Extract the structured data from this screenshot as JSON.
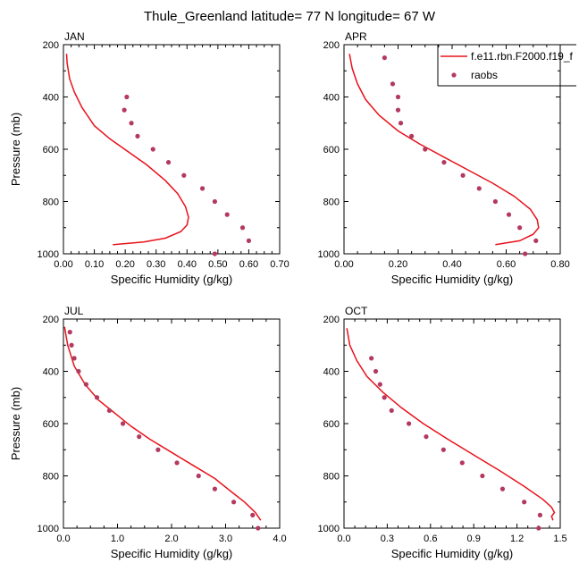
{
  "figure_title": "Thule_Greenland  latitude= 77 N longitude= 67 W",
  "legend": {
    "model_label": "f.e11.rbn.F2000.f19_f",
    "obs_label": "raobs",
    "placement": "top-right of APR panel"
  },
  "colors": {
    "model": "#e8121b",
    "obs": "#b33a5e",
    "axis": "#000000"
  },
  "chart_data": [
    {
      "type": "line",
      "panel_label": "JAN",
      "xlabel": "Specific Humidity (g/kg)",
      "ylabel": "Pressure (mb)",
      "xlim": [
        0,
        0.7
      ],
      "xticks": [
        "0.00",
        "0.10",
        "0.20",
        "0.30",
        "0.40",
        "0.50",
        "0.60",
        "0.70"
      ],
      "ylim": [
        200,
        1000
      ],
      "yticks": [
        "200",
        "400",
        "600",
        "800",
        "1000"
      ],
      "y_inverted": true,
      "series": [
        {
          "name": "f.e11.rbn.F2000.f19_f",
          "kind": "line",
          "x": [
            0.01,
            0.012,
            0.02,
            0.035,
            0.06,
            0.1,
            0.15,
            0.21,
            0.27,
            0.33,
            0.37,
            0.395,
            0.405,
            0.4,
            0.38,
            0.33,
            0.26,
            0.16
          ],
          "y": [
            235,
            270,
            330,
            380,
            440,
            510,
            560,
            610,
            660,
            720,
            770,
            820,
            860,
            890,
            915,
            940,
            955,
            965
          ]
        },
        {
          "name": "raobs",
          "kind": "scatter",
          "x": [
            0.205,
            0.197,
            0.22,
            0.24,
            0.29,
            0.34,
            0.39,
            0.45,
            0.49,
            0.53,
            0.58,
            0.6,
            0.49
          ],
          "y": [
            400,
            450,
            500,
            550,
            600,
            650,
            700,
            750,
            800,
            850,
            900,
            950,
            1000
          ]
        }
      ]
    },
    {
      "type": "line",
      "panel_label": "APR",
      "xlabel": "Specific Humidity (g/kg)",
      "ylabel": "",
      "xlim": [
        0,
        0.8
      ],
      "xticks": [
        "0.00",
        "0.20",
        "0.40",
        "0.60",
        "0.80"
      ],
      "ylim": [
        200,
        1000
      ],
      "yticks": [
        "200",
        "400",
        "600",
        "800",
        "1000"
      ],
      "y_inverted": true,
      "series": [
        {
          "name": "f.e11.rbn.F2000.f19_f",
          "kind": "line",
          "x": [
            0.02,
            0.03,
            0.05,
            0.08,
            0.13,
            0.2,
            0.28,
            0.37,
            0.46,
            0.55,
            0.63,
            0.69,
            0.715,
            0.72,
            0.7,
            0.65,
            0.56
          ],
          "y": [
            235,
            290,
            350,
            410,
            470,
            530,
            580,
            630,
            680,
            730,
            780,
            830,
            870,
            900,
            925,
            950,
            965
          ]
        },
        {
          "name": "raobs",
          "kind": "scatter",
          "x": [
            0.15,
            0.18,
            0.2,
            0.2,
            0.21,
            0.25,
            0.3,
            0.37,
            0.44,
            0.5,
            0.56,
            0.61,
            0.65,
            0.71,
            0.67
          ],
          "y": [
            250,
            350,
            400,
            450,
            500,
            550,
            600,
            650,
            700,
            750,
            800,
            850,
            900,
            950,
            1000
          ]
        }
      ]
    },
    {
      "type": "line",
      "panel_label": "JUL",
      "xlabel": "Specific Humidity (g/kg)",
      "ylabel": "Pressure (mb)",
      "xlim": [
        0,
        4.0
      ],
      "xticks": [
        "0.0",
        "1.0",
        "2.0",
        "3.0",
        "4.0"
      ],
      "ylim": [
        200,
        1000
      ],
      "yticks": [
        "200",
        "400",
        "600",
        "800",
        "1000"
      ],
      "y_inverted": true,
      "series": [
        {
          "name": "f.e11.rbn.F2000.f19_f",
          "kind": "line",
          "x": [
            0.02,
            0.08,
            0.2,
            0.4,
            0.65,
            0.95,
            1.25,
            1.6,
            2.0,
            2.4,
            2.8,
            3.1,
            3.35,
            3.55,
            3.65
          ],
          "y": [
            230,
            300,
            380,
            450,
            510,
            560,
            610,
            660,
            710,
            760,
            810,
            860,
            900,
            940,
            970
          ]
        },
        {
          "name": "raobs",
          "kind": "scatter",
          "x": [
            0.12,
            0.15,
            0.2,
            0.28,
            0.42,
            0.62,
            0.85,
            1.1,
            1.4,
            1.75,
            2.1,
            2.5,
            2.8,
            3.15,
            3.5,
            3.6
          ],
          "y": [
            250,
            300,
            350,
            400,
            450,
            500,
            550,
            600,
            650,
            700,
            750,
            800,
            850,
            900,
            950,
            1000
          ]
        }
      ]
    },
    {
      "type": "line",
      "panel_label": "OCT",
      "xlabel": "Specific Humidity (g/kg)",
      "ylabel": "",
      "xlim": [
        0,
        1.5
      ],
      "xticks": [
        "0.0",
        "0.3",
        "0.6",
        "0.9",
        "1.2",
        "1.5"
      ],
      "ylim": [
        200,
        1000
      ],
      "yticks": [
        "200",
        "400",
        "600",
        "800",
        "1000"
      ],
      "y_inverted": true,
      "series": [
        {
          "name": "f.e11.rbn.F2000.f19_f",
          "kind": "line",
          "x": [
            0.02,
            0.04,
            0.09,
            0.16,
            0.27,
            0.4,
            0.55,
            0.72,
            0.9,
            1.08,
            1.25,
            1.38,
            1.44,
            1.46,
            1.44,
            1.45
          ],
          "y": [
            235,
            300,
            360,
            420,
            480,
            540,
            600,
            660,
            720,
            780,
            840,
            890,
            920,
            940,
            955,
            970
          ]
        },
        {
          "name": "raobs",
          "kind": "scatter",
          "x": [
            0.19,
            0.22,
            0.25,
            0.28,
            0.33,
            0.45,
            0.57,
            0.69,
            0.82,
            0.96,
            1.1,
            1.25,
            1.36,
            1.35
          ],
          "y": [
            350,
            400,
            450,
            500,
            550,
            600,
            650,
            700,
            750,
            800,
            850,
            900,
            950,
            1000
          ]
        }
      ]
    }
  ]
}
